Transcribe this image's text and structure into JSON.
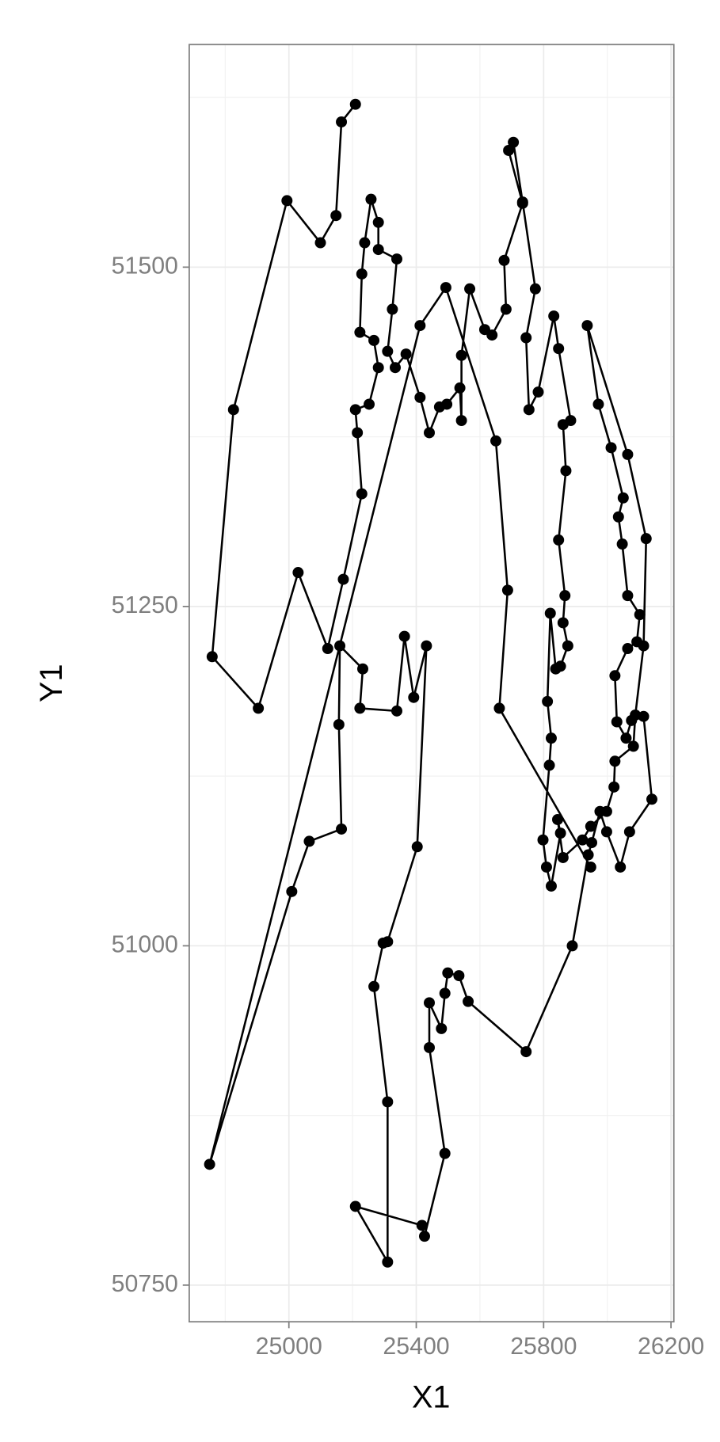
{
  "chart_data": {
    "type": "line",
    "markers": true,
    "color": "#000000",
    "xlabel": "X1",
    "ylabel": "Y1",
    "xlim": [
      24687,
      26209
    ],
    "ylim": [
      50723,
      51664
    ],
    "xticks": [
      25000,
      25400,
      25800,
      26200
    ],
    "yticks": [
      50750,
      51000,
      51250,
      51500
    ],
    "xminor": [
      24800,
      25200,
      25600,
      26000
    ],
    "yminor": [
      50875,
      51125,
      51375,
      51625
    ],
    "grid": true,
    "x": [
      25209,
      25165,
      25148,
      25099,
      24994,
      24826,
      24759,
      24904,
      25029,
      25122,
      25171,
      25229,
      25215,
      25209,
      25252,
      25281,
      25267,
      25223,
      25229,
      25238,
      25258,
      25281,
      25281,
      25339,
      25325,
      25310,
      25334,
      25368,
      25412,
      25441,
      25473,
      25496,
      25537,
      25542,
      25542,
      25568,
      25615,
      25638,
      25682,
      25676,
      25734,
      25690,
      25705,
      25734,
      25774,
      25745,
      25754,
      25783,
      25832,
      25847,
      25885,
      25861,
      25870,
      25847,
      25867,
      25861,
      25876,
      25853,
      25838,
      25821,
      25812,
      25824,
      25818,
      25798,
      25809,
      25824,
      25853,
      25844,
      25861,
      25922,
      25948,
      25998,
      26021,
      26024,
      26082,
      26088,
      26114,
      26122,
      26064,
      25937,
      25972,
      26012,
      26050,
      26035,
      26047,
      26064,
      26102,
      26093,
      26064,
      26024,
      26030,
      26059,
      26076,
      26114,
      26140,
      26070,
      26041,
      25998,
      25977,
      25951,
      25940,
      25890,
      25745,
      25563,
      25534,
      25499,
      25490,
      25479,
      25441,
      25441,
      25490,
      25426,
      25418,
      25209,
      25310,
      25310,
      25267,
      25296,
      25310,
      25403,
      25432,
      25392,
      25363,
      25339,
      25223,
      25232,
      25160,
      25157,
      25165,
      25064,
      25009,
      24751,
      25412,
      25493,
      25650,
      25687,
      25661,
      25948
    ],
    "y": [
      51620,
      51607,
      51538,
      51518,
      51549,
      51395,
      51213,
      51175,
      51275,
      51219,
      51270,
      51333,
      51378,
      51395,
      51399,
      51426,
      51446,
      51452,
      51495,
      51518,
      51550,
      51533,
      51513,
      51506,
      51469,
      51438,
      51426,
      51436,
      51404,
      51378,
      51397,
      51399,
      51411,
      51387,
      51435,
      51484,
      51454,
      51450,
      51469,
      51505,
      51547,
      51586,
      51592,
      51548,
      51484,
      51448,
      51395,
      51408,
      51464,
      51440,
      51387,
      51384,
      51350,
      51299,
      51258,
      51238,
      51221,
      51206,
      51204,
      51245,
      51180,
      51153,
      51133,
      51078,
      51058,
      51044,
      51083,
      51093,
      51065,
      51078,
      51088,
      51099,
      51117,
      51136,
      51147,
      51170,
      51221,
      51300,
      51362,
      51457,
      51399,
      51367,
      51330,
      51316,
      51296,
      51258,
      51244,
      51224,
      51219,
      51199,
      51165,
      51153,
      51166,
      51169,
      51108,
      51084,
      51058,
      51084,
      51099,
      51076,
      51067,
      51000,
      50922,
      50959,
      50978,
      50980,
      50965,
      50939,
      50958,
      50925,
      50847,
      50786,
      50794,
      50808,
      50767,
      50885,
      50970,
      51002,
      51003,
      51073,
      51221,
      51183,
      51228,
      51173,
      51175,
      51204,
      51221,
      51163,
      51086,
      51077,
      51040,
      50839,
      51457,
      51485,
      51372,
      51262,
      51175,
      51058
    ]
  }
}
